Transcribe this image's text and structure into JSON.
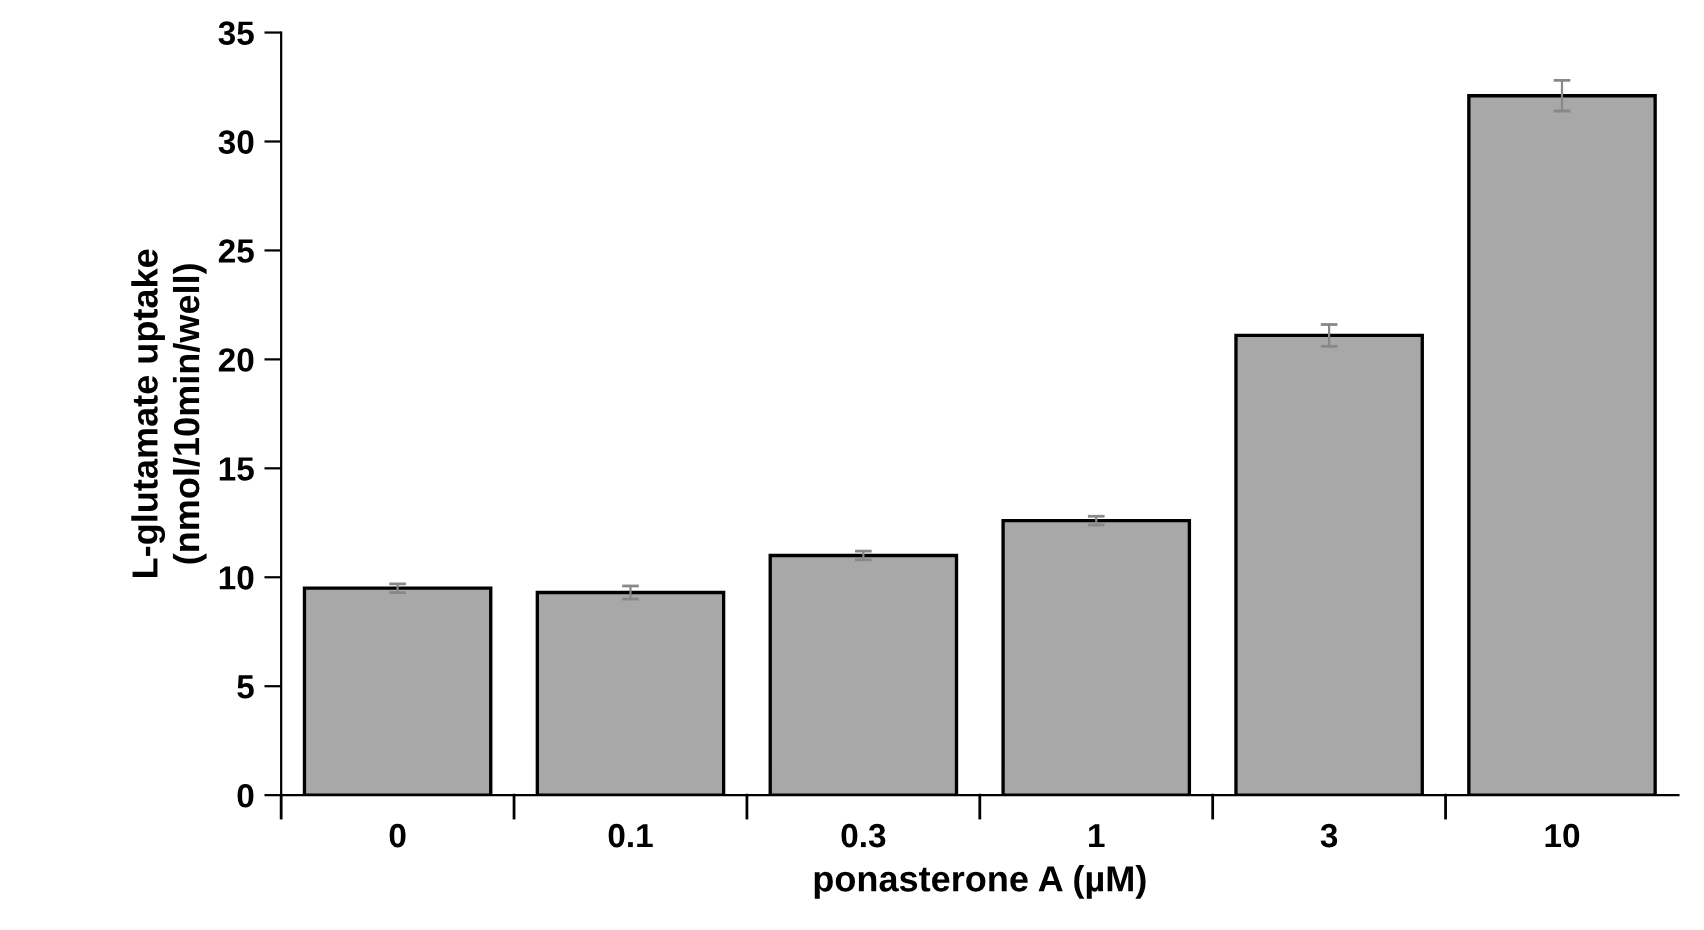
{
  "chart_data": {
    "type": "bar",
    "xlabel": "ponasterone A (µM)",
    "ylabel": "L-glutamate uptake\n(nmol/10min/well)",
    "categories": [
      "0",
      "0.1",
      "0.3",
      "1",
      "3",
      "10"
    ],
    "values": [
      9.5,
      9.3,
      11.0,
      12.6,
      21.1,
      32.1
    ],
    "errors": [
      0.2,
      0.3,
      0.2,
      0.2,
      0.5,
      0.7
    ],
    "color": "#a8a8a8",
    "ylim": [
      0,
      35
    ],
    "yticks": [
      0,
      5,
      10,
      15,
      20,
      25,
      30,
      35
    ],
    "grid": false
  }
}
